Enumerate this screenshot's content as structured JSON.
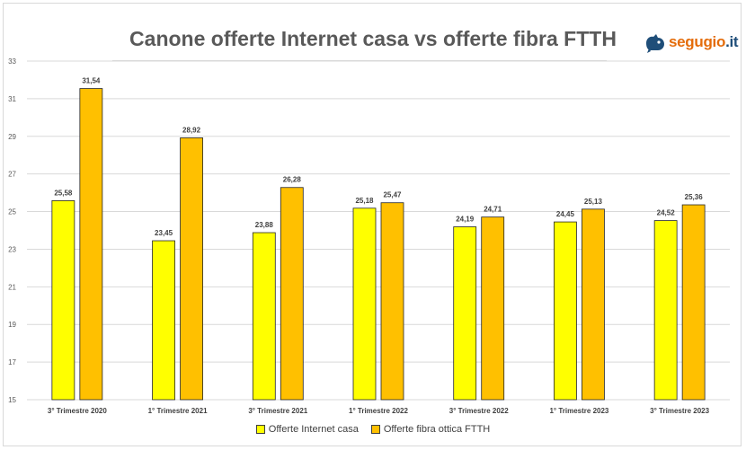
{
  "logo": {
    "name": "segugio",
    "tld": ".it"
  },
  "colors": {
    "series1": "#ffff00",
    "series2": "#ffc000",
    "grid": "#d9d9d9",
    "bar_border": "#262626"
  },
  "chart_data": {
    "type": "bar",
    "title": "Canone offerte Internet casa vs offerte fibra FTTH",
    "categories": [
      "3° Trimestre 2020",
      "1° Trimestre 2021",
      "3° Trimestre 2021",
      "1° Trimestre 2022",
      "3° Trimestre 2022",
      "1° Trimestre 2023",
      "3° Trimestre 2023"
    ],
    "series": [
      {
        "name": "Offerte Internet casa",
        "values": [
          25.58,
          23.45,
          23.88,
          25.18,
          24.19,
          24.45,
          24.52
        ],
        "labels": [
          "25,58",
          "23,45",
          "23,88",
          "25,18",
          "24,19",
          "24,45",
          "24,52"
        ]
      },
      {
        "name": "Offerte fibra ottica FTTH",
        "values": [
          31.54,
          28.92,
          26.28,
          25.47,
          24.71,
          25.13,
          25.36
        ],
        "labels": [
          "31,54",
          "28,92",
          "26,28",
          "25,47",
          "24,71",
          "25,13",
          "25,36"
        ]
      }
    ],
    "ylim": [
      15,
      33
    ],
    "yticks": [
      "15",
      "17",
      "19",
      "21",
      "23",
      "25",
      "27",
      "29",
      "31",
      "33"
    ],
    "grid": true,
    "legend_position": "bottom"
  }
}
